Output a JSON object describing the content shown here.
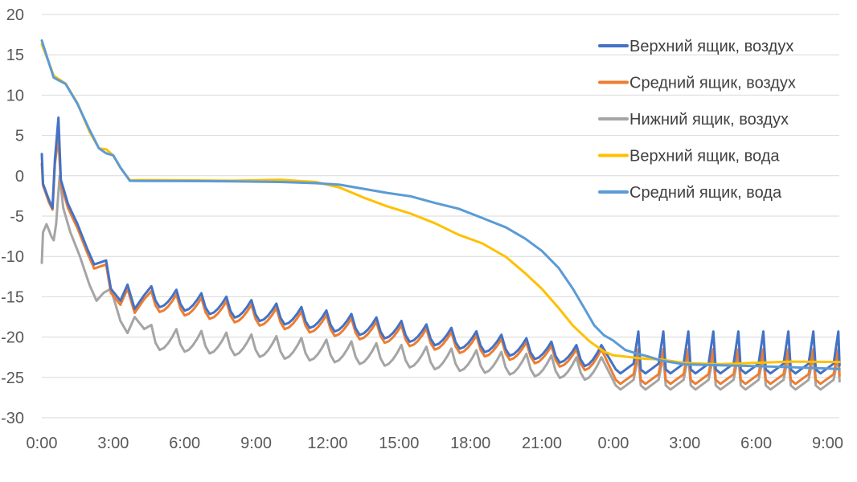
{
  "chart_data": {
    "type": "line",
    "title": "",
    "xlabel": "",
    "ylabel": "",
    "ylim": [
      -30,
      20
    ],
    "yticks": [
      20,
      15,
      10,
      5,
      0,
      -5,
      -10,
      -15,
      -20,
      -25,
      -30
    ],
    "xlim": [
      0,
      33.5
    ],
    "x_tick_labels": [
      "0:00",
      "3:00",
      "6:00",
      "9:00",
      "12:00",
      "15:00",
      "18:00",
      "21:00",
      "0:00",
      "3:00",
      "6:00",
      "9:00"
    ],
    "x_tick_hours": [
      0,
      3,
      6,
      9,
      12,
      15,
      18,
      21,
      24,
      27,
      30,
      33
    ],
    "grid": "horizontal",
    "legend_position": "top-right",
    "series": [
      {
        "name": "Верхний ящик, воздух",
        "color": "#4472c4",
        "values": [
          [
            0,
            2.7
          ],
          [
            0.05,
            -1
          ],
          [
            0.3,
            -3
          ],
          [
            0.45,
            -4
          ],
          [
            0.55,
            2
          ],
          [
            0.7,
            7.2
          ],
          [
            0.8,
            -0.5
          ],
          [
            1.1,
            -3.5
          ],
          [
            1.5,
            -6
          ],
          [
            1.9,
            -9
          ],
          [
            2.2,
            -11
          ],
          [
            2.5,
            -10.7
          ],
          [
            2.7,
            -10.5
          ],
          [
            2.9,
            -14
          ],
          [
            3.3,
            -15.5
          ],
          [
            3.6,
            -13.5
          ],
          [
            3.9,
            -16.5
          ],
          [
            4.3,
            -14.8
          ],
          [
            4.6,
            -13.7
          ]
        ],
        "cycle": {
          "start": 4.6,
          "end": 23.9,
          "period": 1.05,
          "peak_start": -13.7,
          "peak_end": -21,
          "drop": 2.6
        },
        "tail": {
          "start": 24.1,
          "end": 33.5,
          "period": 1.05,
          "base": -24.5,
          "peak": -19.3
        }
      },
      {
        "name": "Средний ящик, воздух",
        "color": "#ed7d31",
        "values": [
          [
            0,
            1.5
          ],
          [
            0.05,
            -1.2
          ],
          [
            0.3,
            -3.3
          ],
          [
            0.45,
            -4.2
          ],
          [
            0.55,
            1.5
          ],
          [
            0.7,
            4.7
          ],
          [
            0.8,
            -1
          ],
          [
            1.1,
            -4
          ],
          [
            1.5,
            -6.5
          ],
          [
            1.9,
            -9.5
          ],
          [
            2.2,
            -11.5
          ],
          [
            2.5,
            -11.2
          ],
          [
            2.7,
            -11
          ],
          [
            2.9,
            -14.5
          ],
          [
            3.3,
            -16
          ],
          [
            3.6,
            -14
          ],
          [
            3.9,
            -17
          ],
          [
            4.3,
            -15.3
          ],
          [
            4.6,
            -14.3
          ]
        ],
        "cycle": {
          "start": 4.6,
          "end": 23.9,
          "period": 1.05,
          "peak_start": -14.3,
          "peak_end": -21.5,
          "drop": 2.6
        },
        "tail": {
          "start": 24.1,
          "end": 33.5,
          "period": 1.05,
          "base": -25.8,
          "peak": -21.5
        }
      },
      {
        "name": "Нижний ящик, воздух",
        "color": "#a5a5a5",
        "values": [
          [
            0,
            -10.8
          ],
          [
            0.05,
            -7
          ],
          [
            0.2,
            -6
          ],
          [
            0.4,
            -7.5
          ],
          [
            0.5,
            -8
          ],
          [
            0.6,
            -6
          ],
          [
            0.75,
            0
          ],
          [
            0.9,
            -4
          ],
          [
            1.2,
            -7
          ],
          [
            1.6,
            -10
          ],
          [
            2,
            -13.5
          ],
          [
            2.3,
            -15.5
          ],
          [
            2.6,
            -14.5
          ],
          [
            2.9,
            -14
          ],
          [
            3.3,
            -18
          ],
          [
            3.6,
            -19.5
          ],
          [
            3.9,
            -17.5
          ],
          [
            4.3,
            -19
          ],
          [
            4.6,
            -18.5
          ]
        ],
        "cycle": {
          "start": 4.6,
          "end": 23.9,
          "period": 1.05,
          "peak_start": -18.8,
          "peak_end": -22.5,
          "drop": 2.8
        },
        "tail": {
          "start": 24.1,
          "end": 33.5,
          "period": 1.05,
          "base": -26.5,
          "peak": -22.3
        }
      },
      {
        "name": "Верхний ящик, вода",
        "color": "#ffc000",
        "values": [
          [
            0,
            16.3
          ],
          [
            0.3,
            14
          ],
          [
            0.5,
            12.5
          ],
          [
            1,
            11.5
          ],
          [
            1.5,
            9
          ],
          [
            2,
            5.5
          ],
          [
            2.4,
            3.5
          ],
          [
            2.7,
            3.2
          ],
          [
            3,
            2.5
          ],
          [
            3.3,
            1
          ],
          [
            3.7,
            -0.5
          ],
          [
            4.2,
            -0.6
          ],
          [
            6,
            -0.6
          ],
          [
            8,
            -0.5
          ],
          [
            10,
            -0.5
          ],
          [
            11.5,
            -0.7
          ],
          [
            12.5,
            -1.5
          ],
          [
            13.5,
            -2.6
          ],
          [
            14.5,
            -3.8
          ],
          [
            15.5,
            -4.7
          ],
          [
            16.5,
            -5.8
          ],
          [
            17.5,
            -7.2
          ],
          [
            18.5,
            -8.5
          ],
          [
            19.5,
            -10.2
          ],
          [
            20.3,
            -12
          ],
          [
            21,
            -14
          ],
          [
            21.7,
            -16.5
          ],
          [
            22.3,
            -18.5
          ],
          [
            23,
            -20.5
          ],
          [
            23.6,
            -21.8
          ],
          [
            24,
            -22.3
          ],
          [
            24.6,
            -22.4
          ],
          [
            25.3,
            -22.6
          ],
          [
            26,
            -22.9
          ],
          [
            27,
            -23.2
          ],
          [
            28.5,
            -23.3
          ],
          [
            30,
            -23.2
          ],
          [
            31.5,
            -23
          ],
          [
            33.5,
            -23
          ]
        ]
      },
      {
        "name": "Средний ящик, вода",
        "color": "#5b9bd5",
        "values": [
          [
            0,
            16.7
          ],
          [
            0.3,
            14
          ],
          [
            0.5,
            12.2
          ],
          [
            1,
            11.5
          ],
          [
            1.5,
            8.8
          ],
          [
            2,
            5.8
          ],
          [
            2.4,
            3.3
          ],
          [
            2.7,
            2.8
          ],
          [
            3,
            2.6
          ],
          [
            3.3,
            1
          ],
          [
            3.7,
            -0.6
          ],
          [
            4.2,
            -0.7
          ],
          [
            6,
            -0.7
          ],
          [
            8,
            -0.6
          ],
          [
            10,
            -0.7
          ],
          [
            11.5,
            -0.9
          ],
          [
            12.5,
            -1
          ],
          [
            13.5,
            -1.5
          ],
          [
            14.5,
            -2.1
          ],
          [
            15.5,
            -2.6
          ],
          [
            16.5,
            -3.4
          ],
          [
            17.5,
            -4.2
          ],
          [
            18.5,
            -5.2
          ],
          [
            19.5,
            -6.4
          ],
          [
            20.3,
            -7.8
          ],
          [
            21,
            -9.3
          ],
          [
            21.7,
            -11.5
          ],
          [
            22.3,
            -14
          ],
          [
            22.8,
            -16.5
          ],
          [
            23.2,
            -18.5
          ],
          [
            23.6,
            -19.7
          ],
          [
            24,
            -20.5
          ],
          [
            24.5,
            -21.5
          ],
          [
            25,
            -22
          ],
          [
            25.5,
            -22.5
          ],
          [
            26,
            -23
          ],
          [
            27,
            -23.5
          ],
          [
            28.5,
            -23.6
          ],
          [
            30,
            -23.7
          ],
          [
            31.5,
            -23.8
          ],
          [
            33.5,
            -24
          ]
        ]
      }
    ]
  }
}
